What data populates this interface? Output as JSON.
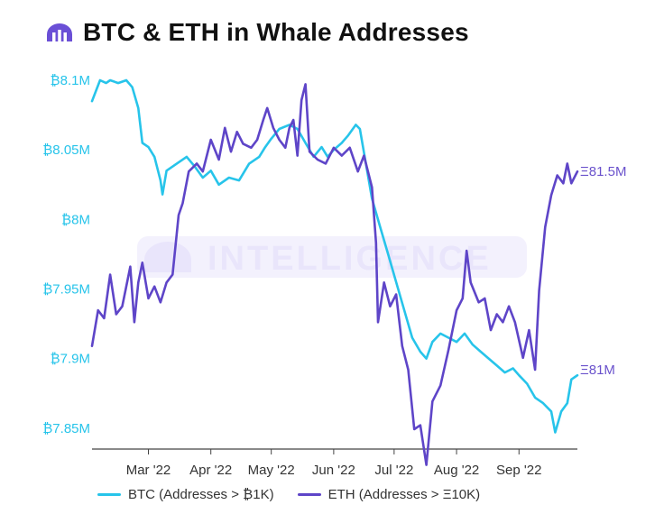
{
  "title": "BTC & ETH in Whale Addresses",
  "brand_icon": "intotheblock-logo-icon",
  "watermark": "INTELLIGENCE",
  "colors": {
    "btc": "#27c4ea",
    "eth": "#5e45c8",
    "axis_btc": "#27c4ea",
    "axis_eth": "#6a52cc",
    "watermark": "#ebe8fb"
  },
  "legend": [
    {
      "label": "BTC (Addresses > ₿1K)",
      "color": "#27c4ea"
    },
    {
      "label": "ETH (Addresses > Ξ10K)",
      "color": "#5e45c8"
    }
  ],
  "chart_data": {
    "type": "line",
    "title": "BTC & ETH in Whale Addresses",
    "x_range": [
      "2022-02-01",
      "2022-09-30"
    ],
    "x_ticks": [
      {
        "date": "2022-03-01",
        "label": "Mar '22"
      },
      {
        "date": "2022-04-01",
        "label": "Apr '22"
      },
      {
        "date": "2022-05-01",
        "label": "May '22"
      },
      {
        "date": "2022-06-01",
        "label": "Jun '22"
      },
      {
        "date": "2022-07-01",
        "label": "Jul '22"
      },
      {
        "date": "2022-08-01",
        "label": "Aug '22"
      },
      {
        "date": "2022-09-01",
        "label": "Sep '22"
      }
    ],
    "y_left": {
      "unit": "BTC",
      "range": [
        7.835,
        8.1
      ],
      "ticks": [
        {
          "value": 8.1,
          "label": "₿8.1M"
        },
        {
          "value": 8.05,
          "label": "₿8.05M"
        },
        {
          "value": 8.0,
          "label": "₿8M"
        },
        {
          "value": 7.95,
          "label": "₿7.95M"
        },
        {
          "value": 7.9,
          "label": "₿7.9M"
        },
        {
          "value": 7.85,
          "label": "₿7.85M"
        }
      ]
    },
    "y_right": {
      "unit": "ETH",
      "range": [
        80.8,
        81.73
      ],
      "ticks": [
        {
          "value": 81.5,
          "label": "Ξ81.5M"
        },
        {
          "value": 81.0,
          "label": "Ξ81M"
        }
      ]
    },
    "series": [
      {
        "name": "BTC (Addresses > ₿1K)",
        "axis": "left",
        "points": [
          [
            "2022-02-01",
            8.085
          ],
          [
            "2022-02-05",
            8.1
          ],
          [
            "2022-02-08",
            8.098
          ],
          [
            "2022-02-10",
            8.1
          ],
          [
            "2022-02-14",
            8.098
          ],
          [
            "2022-02-18",
            8.1
          ],
          [
            "2022-02-21",
            8.095
          ],
          [
            "2022-02-24",
            8.08
          ],
          [
            "2022-02-26",
            8.055
          ],
          [
            "2022-03-01",
            8.052
          ],
          [
            "2022-03-04",
            8.045
          ],
          [
            "2022-03-07",
            8.028
          ],
          [
            "2022-03-08",
            8.018
          ],
          [
            "2022-03-10",
            8.035
          ],
          [
            "2022-03-15",
            8.04
          ],
          [
            "2022-03-20",
            8.045
          ],
          [
            "2022-03-24",
            8.038
          ],
          [
            "2022-03-28",
            8.03
          ],
          [
            "2022-04-01",
            8.035
          ],
          [
            "2022-04-05",
            8.025
          ],
          [
            "2022-04-10",
            8.03
          ],
          [
            "2022-04-15",
            8.028
          ],
          [
            "2022-04-20",
            8.04
          ],
          [
            "2022-04-25",
            8.045
          ],
          [
            "2022-04-28",
            8.052
          ],
          [
            "2022-05-01",
            8.058
          ],
          [
            "2022-05-05",
            8.065
          ],
          [
            "2022-05-10",
            8.068
          ],
          [
            "2022-05-14",
            8.065
          ],
          [
            "2022-05-18",
            8.055
          ],
          [
            "2022-05-22",
            8.045
          ],
          [
            "2022-05-26",
            8.052
          ],
          [
            "2022-05-29",
            8.045
          ],
          [
            "2022-06-01",
            8.05
          ],
          [
            "2022-06-05",
            8.055
          ],
          [
            "2022-06-08",
            8.06
          ],
          [
            "2022-06-12",
            8.068
          ],
          [
            "2022-06-14",
            8.065
          ],
          [
            "2022-06-17",
            8.04
          ],
          [
            "2022-06-20",
            8.015
          ],
          [
            "2022-06-24",
            7.995
          ],
          [
            "2022-06-28",
            7.975
          ],
          [
            "2022-07-02",
            7.955
          ],
          [
            "2022-07-06",
            7.935
          ],
          [
            "2022-07-10",
            7.915
          ],
          [
            "2022-07-14",
            7.905
          ],
          [
            "2022-07-17",
            7.9
          ],
          [
            "2022-07-20",
            7.912
          ],
          [
            "2022-07-24",
            7.918
          ],
          [
            "2022-07-28",
            7.915
          ],
          [
            "2022-08-01",
            7.912
          ],
          [
            "2022-08-05",
            7.918
          ],
          [
            "2022-08-09",
            7.91
          ],
          [
            "2022-08-13",
            7.905
          ],
          [
            "2022-08-17",
            7.9
          ],
          [
            "2022-08-21",
            7.895
          ],
          [
            "2022-08-25",
            7.89
          ],
          [
            "2022-08-29",
            7.893
          ],
          [
            "2022-09-01",
            7.888
          ],
          [
            "2022-09-05",
            7.882
          ],
          [
            "2022-09-09",
            7.872
          ],
          [
            "2022-09-13",
            7.868
          ],
          [
            "2022-09-17",
            7.862
          ],
          [
            "2022-09-19",
            7.847
          ],
          [
            "2022-09-22",
            7.862
          ],
          [
            "2022-09-25",
            7.868
          ],
          [
            "2022-09-27",
            7.885
          ],
          [
            "2022-09-30",
            7.888
          ]
        ]
      },
      {
        "name": "ETH (Addresses > Ξ10K)",
        "axis": "right",
        "points": [
          [
            "2022-02-01",
            81.06
          ],
          [
            "2022-02-04",
            81.15
          ],
          [
            "2022-02-07",
            81.13
          ],
          [
            "2022-02-10",
            81.24
          ],
          [
            "2022-02-13",
            81.14
          ],
          [
            "2022-02-16",
            81.16
          ],
          [
            "2022-02-20",
            81.26
          ],
          [
            "2022-02-22",
            81.12
          ],
          [
            "2022-02-24",
            81.22
          ],
          [
            "2022-02-26",
            81.27
          ],
          [
            "2022-03-01",
            81.18
          ],
          [
            "2022-03-04",
            81.21
          ],
          [
            "2022-03-07",
            81.17
          ],
          [
            "2022-03-10",
            81.22
          ],
          [
            "2022-03-13",
            81.24
          ],
          [
            "2022-03-16",
            81.39
          ],
          [
            "2022-03-18",
            81.42
          ],
          [
            "2022-03-21",
            81.5
          ],
          [
            "2022-03-25",
            81.52
          ],
          [
            "2022-03-28",
            81.5
          ],
          [
            "2022-04-01",
            81.58
          ],
          [
            "2022-04-05",
            81.53
          ],
          [
            "2022-04-08",
            81.61
          ],
          [
            "2022-04-11",
            81.55
          ],
          [
            "2022-04-14",
            81.6
          ],
          [
            "2022-04-17",
            81.57
          ],
          [
            "2022-04-21",
            81.56
          ],
          [
            "2022-04-24",
            81.58
          ],
          [
            "2022-04-27",
            81.63
          ],
          [
            "2022-04-29",
            81.66
          ],
          [
            "2022-05-02",
            81.61
          ],
          [
            "2022-05-05",
            81.58
          ],
          [
            "2022-05-08",
            81.56
          ],
          [
            "2022-05-10",
            81.61
          ],
          [
            "2022-05-12",
            81.63
          ],
          [
            "2022-05-14",
            81.54
          ],
          [
            "2022-05-16",
            81.68
          ],
          [
            "2022-05-18",
            81.72
          ],
          [
            "2022-05-20",
            81.55
          ],
          [
            "2022-05-24",
            81.53
          ],
          [
            "2022-05-28",
            81.52
          ],
          [
            "2022-06-01",
            81.56
          ],
          [
            "2022-06-05",
            81.54
          ],
          [
            "2022-06-09",
            81.56
          ],
          [
            "2022-06-13",
            81.5
          ],
          [
            "2022-06-16",
            81.54
          ],
          [
            "2022-06-20",
            81.46
          ],
          [
            "2022-06-22",
            81.32
          ],
          [
            "2022-06-23",
            81.12
          ],
          [
            "2022-06-26",
            81.22
          ],
          [
            "2022-06-29",
            81.16
          ],
          [
            "2022-07-02",
            81.19
          ],
          [
            "2022-07-05",
            81.06
          ],
          [
            "2022-07-08",
            81.0
          ],
          [
            "2022-07-11",
            80.85
          ],
          [
            "2022-07-14",
            80.86
          ],
          [
            "2022-07-17",
            80.76
          ],
          [
            "2022-07-20",
            80.92
          ],
          [
            "2022-07-24",
            80.96
          ],
          [
            "2022-07-28",
            81.05
          ],
          [
            "2022-08-01",
            81.15
          ],
          [
            "2022-08-04",
            81.18
          ],
          [
            "2022-08-06",
            81.3
          ],
          [
            "2022-08-08",
            81.22
          ],
          [
            "2022-08-12",
            81.17
          ],
          [
            "2022-08-15",
            81.18
          ],
          [
            "2022-08-18",
            81.1
          ],
          [
            "2022-08-21",
            81.14
          ],
          [
            "2022-08-24",
            81.12
          ],
          [
            "2022-08-27",
            81.16
          ],
          [
            "2022-08-30",
            81.12
          ],
          [
            "2022-09-03",
            81.03
          ],
          [
            "2022-09-06",
            81.1
          ],
          [
            "2022-09-09",
            81.0
          ],
          [
            "2022-09-11",
            81.2
          ],
          [
            "2022-09-14",
            81.36
          ],
          [
            "2022-09-17",
            81.44
          ],
          [
            "2022-09-20",
            81.49
          ],
          [
            "2022-09-23",
            81.47
          ],
          [
            "2022-09-25",
            81.52
          ],
          [
            "2022-09-27",
            81.47
          ],
          [
            "2022-09-30",
            81.5
          ]
        ]
      }
    ],
    "grid": false,
    "legend_position": "bottom-left"
  }
}
